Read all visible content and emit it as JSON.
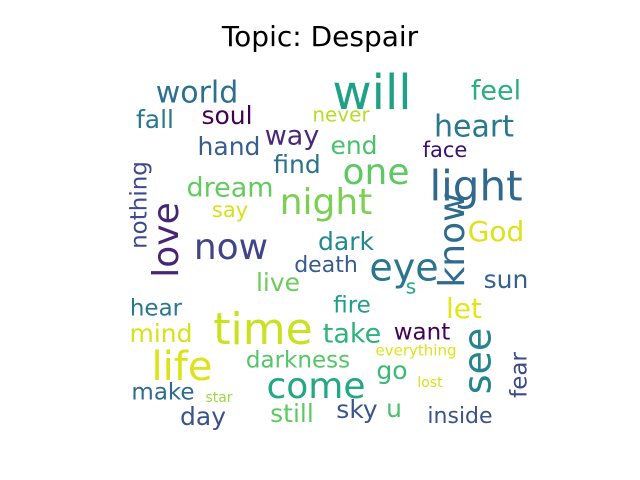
{
  "chart_data": {
    "type": "wordcloud",
    "title": "Topic: Despair",
    "words": [
      {
        "text": "will",
        "weight": 1.0,
        "color": "#1fa187"
      },
      {
        "text": "world",
        "weight": 0.55,
        "color": "#2e6f8e"
      },
      {
        "text": "feel",
        "weight": 0.48,
        "color": "#29af7f"
      },
      {
        "text": "soul",
        "weight": 0.45,
        "color": "#440154"
      },
      {
        "text": "never",
        "weight": 0.35,
        "color": "#b5de2b"
      },
      {
        "text": "heart",
        "weight": 0.55,
        "color": "#2a788e"
      },
      {
        "text": "fall",
        "weight": 0.45,
        "color": "#2a788e"
      },
      {
        "text": "way",
        "weight": 0.48,
        "color": "#482878"
      },
      {
        "text": "hand",
        "weight": 0.45,
        "color": "#355f8d"
      },
      {
        "text": "end",
        "weight": 0.45,
        "color": "#4ac16d"
      },
      {
        "text": "face",
        "weight": 0.4,
        "color": "#3b0f70"
      },
      {
        "text": "one",
        "weight": 0.65,
        "color": "#5ec962"
      },
      {
        "text": "light",
        "weight": 0.8,
        "color": "#31688e"
      },
      {
        "text": "find",
        "weight": 0.45,
        "color": "#2c728e"
      },
      {
        "text": "night",
        "weight": 0.65,
        "color": "#7ad151"
      },
      {
        "text": "dream",
        "weight": 0.48,
        "color": "#63cb5f"
      },
      {
        "text": "nothing",
        "weight": 0.4,
        "color": "#3e4a89"
      },
      {
        "text": "say",
        "weight": 0.4,
        "color": "#d5e21a"
      },
      {
        "text": "love",
        "weight": 0.65,
        "color": "#482475"
      },
      {
        "text": "now",
        "weight": 0.7,
        "color": "#414487"
      },
      {
        "text": "know",
        "weight": 0.68,
        "color": "#2f6b8e"
      },
      {
        "text": "God",
        "weight": 0.5,
        "color": "#dde318"
      },
      {
        "text": "dark",
        "weight": 0.45,
        "color": "#23898e"
      },
      {
        "text": "eye",
        "weight": 0.68,
        "color": "#2a768e"
      },
      {
        "text": "death",
        "weight": 0.4,
        "color": "#365c8d"
      },
      {
        "text": "live",
        "weight": 0.45,
        "color": "#6ccd5a"
      },
      {
        "text": "s",
        "weight": 0.35,
        "color": "#22a884"
      },
      {
        "text": "sun",
        "weight": 0.45,
        "color": "#33638d"
      },
      {
        "text": "hear",
        "weight": 0.42,
        "color": "#2a788e"
      },
      {
        "text": "fire",
        "weight": 0.42,
        "color": "#1f9e89"
      },
      {
        "text": "let",
        "weight": 0.5,
        "color": "#e5e419"
      },
      {
        "text": "mind",
        "weight": 0.45,
        "color": "#d8e219"
      },
      {
        "text": "time",
        "weight": 0.8,
        "color": "#cae11f"
      },
      {
        "text": "take",
        "weight": 0.5,
        "color": "#2db27d"
      },
      {
        "text": "want",
        "weight": 0.45,
        "color": "#440154"
      },
      {
        "text": "see",
        "weight": 0.72,
        "color": "#25858e"
      },
      {
        "text": "life",
        "weight": 0.75,
        "color": "#dde318"
      },
      {
        "text": "darkness",
        "weight": 0.45,
        "color": "#54c568"
      },
      {
        "text": "everything",
        "weight": 0.3,
        "color": "#dde318"
      },
      {
        "text": "come",
        "weight": 0.68,
        "color": "#22a884"
      },
      {
        "text": "go",
        "weight": 0.45,
        "color": "#3aba76"
      },
      {
        "text": "fear",
        "weight": 0.45,
        "color": "#3e4989"
      },
      {
        "text": "make",
        "weight": 0.42,
        "color": "#2f6b8e"
      },
      {
        "text": "star",
        "weight": 0.28,
        "color": "#9bd93c"
      },
      {
        "text": "lost",
        "weight": 0.28,
        "color": "#d2e21b"
      },
      {
        "text": "day",
        "weight": 0.45,
        "color": "#3b528b"
      },
      {
        "text": "still",
        "weight": 0.48,
        "color": "#5ec962"
      },
      {
        "text": "sky",
        "weight": 0.48,
        "color": "#39568c"
      },
      {
        "text": "u",
        "weight": 0.45,
        "color": "#4ac16d"
      },
      {
        "text": "inside",
        "weight": 0.42,
        "color": "#3b528b"
      }
    ]
  }
}
